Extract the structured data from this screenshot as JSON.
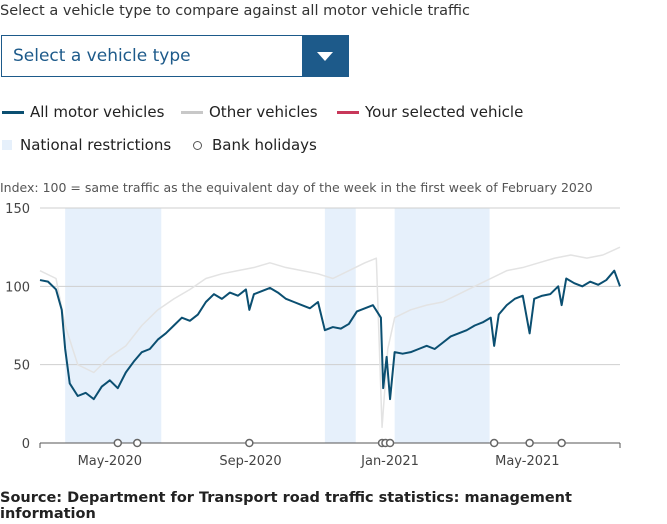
{
  "prompt": "Select a vehicle type to compare against all motor vehicle traffic",
  "select": {
    "value": "Select a vehicle type",
    "icon": "chevron-down-icon"
  },
  "legend": [
    {
      "label": "All motor vehicles",
      "color": "#0b4f71"
    },
    {
      "label": "Other vehicles",
      "color": "#c8c8c8"
    },
    {
      "label": "Your selected vehicle",
      "color": "#c8385a"
    },
    {
      "label": "National restrictions",
      "color": "#e6f0fb"
    },
    {
      "label": "Bank holidays"
    }
  ],
  "index_note": "Index: 100 = same traffic as the equivalent day of the week in the first week of February 2020",
  "source": "Source: Department for Transport road traffic statistics: management information",
  "chart_data": {
    "type": "line",
    "xlim": [
      "2020-03-01",
      "2021-07-21"
    ],
    "ylim": [
      0,
      150
    ],
    "yticks": [
      0,
      50,
      100,
      150
    ],
    "xticks": [
      {
        "date": "2020-05-01",
        "label": "May-2020"
      },
      {
        "date": "2020-09-01",
        "label": "Sep-2020"
      },
      {
        "date": "2021-01-01",
        "label": "Jan-2021"
      },
      {
        "date": "2021-05-01",
        "label": "May-2021"
      }
    ],
    "grid": true,
    "restrictions": [
      [
        "2020-03-23",
        "2020-06-15"
      ],
      [
        "2020-11-05",
        "2020-12-02"
      ],
      [
        "2021-01-05",
        "2021-03-29"
      ]
    ],
    "bank_holidays": [
      "2020-05-08",
      "2020-05-25",
      "2020-08-31",
      "2020-12-25",
      "2020-12-28",
      "2021-01-01",
      "2021-04-02",
      "2021-05-03",
      "2021-05-31"
    ],
    "series": [
      {
        "name": "Other vehicles",
        "color": "#e3e3e3",
        "points": [
          [
            "2020-03-01",
            110
          ],
          [
            "2020-03-15",
            105
          ],
          [
            "2020-03-23",
            75
          ],
          [
            "2020-04-03",
            50
          ],
          [
            "2020-04-17",
            45
          ],
          [
            "2020-05-01",
            55
          ],
          [
            "2020-05-15",
            62
          ],
          [
            "2020-05-29",
            75
          ],
          [
            "2020-06-12",
            85
          ],
          [
            "2020-06-26",
            92
          ],
          [
            "2020-07-10",
            98
          ],
          [
            "2020-07-24",
            105
          ],
          [
            "2020-08-07",
            108
          ],
          [
            "2020-08-21",
            110
          ],
          [
            "2020-09-04",
            112
          ],
          [
            "2020-09-18",
            115
          ],
          [
            "2020-10-02",
            112
          ],
          [
            "2020-10-16",
            110
          ],
          [
            "2020-10-30",
            108
          ],
          [
            "2020-11-12",
            105
          ],
          [
            "2020-11-26",
            110
          ],
          [
            "2020-12-10",
            115
          ],
          [
            "2020-12-20",
            118
          ],
          [
            "2020-12-25",
            10
          ],
          [
            "2020-12-30",
            60
          ],
          [
            "2021-01-05",
            80
          ],
          [
            "2021-01-19",
            85
          ],
          [
            "2021-02-02",
            88
          ],
          [
            "2021-02-16",
            90
          ],
          [
            "2021-03-02",
            95
          ],
          [
            "2021-03-16",
            100
          ],
          [
            "2021-03-30",
            105
          ],
          [
            "2021-04-13",
            110
          ],
          [
            "2021-04-27",
            112
          ],
          [
            "2021-05-11",
            115
          ],
          [
            "2021-05-25",
            118
          ],
          [
            "2021-06-08",
            120
          ],
          [
            "2021-06-22",
            118
          ],
          [
            "2021-07-06",
            120
          ],
          [
            "2021-07-21",
            125
          ]
        ]
      },
      {
        "name": "All motor vehicles",
        "color": "#0b4f71",
        "points": [
          [
            "2020-03-01",
            104
          ],
          [
            "2020-03-08",
            103
          ],
          [
            "2020-03-15",
            98
          ],
          [
            "2020-03-20",
            85
          ],
          [
            "2020-03-23",
            60
          ],
          [
            "2020-03-27",
            38
          ],
          [
            "2020-04-03",
            30
          ],
          [
            "2020-04-10",
            32
          ],
          [
            "2020-04-17",
            28
          ],
          [
            "2020-04-24",
            36
          ],
          [
            "2020-05-01",
            40
          ],
          [
            "2020-05-08",
            35
          ],
          [
            "2020-05-15",
            45
          ],
          [
            "2020-05-22",
            52
          ],
          [
            "2020-05-29",
            58
          ],
          [
            "2020-06-05",
            60
          ],
          [
            "2020-06-12",
            66
          ],
          [
            "2020-06-19",
            70
          ],
          [
            "2020-06-26",
            75
          ],
          [
            "2020-07-03",
            80
          ],
          [
            "2020-07-10",
            78
          ],
          [
            "2020-07-17",
            82
          ],
          [
            "2020-07-24",
            90
          ],
          [
            "2020-07-31",
            95
          ],
          [
            "2020-08-07",
            92
          ],
          [
            "2020-08-14",
            96
          ],
          [
            "2020-08-21",
            94
          ],
          [
            "2020-08-28",
            98
          ],
          [
            "2020-08-31",
            85
          ],
          [
            "2020-09-04",
            95
          ],
          [
            "2020-09-11",
            97
          ],
          [
            "2020-09-18",
            99
          ],
          [
            "2020-09-25",
            96
          ],
          [
            "2020-10-02",
            92
          ],
          [
            "2020-10-09",
            90
          ],
          [
            "2020-10-16",
            88
          ],
          [
            "2020-10-23",
            86
          ],
          [
            "2020-10-30",
            90
          ],
          [
            "2020-11-05",
            72
          ],
          [
            "2020-11-12",
            74
          ],
          [
            "2020-11-19",
            73
          ],
          [
            "2020-11-26",
            76
          ],
          [
            "2020-12-03",
            84
          ],
          [
            "2020-12-10",
            86
          ],
          [
            "2020-12-17",
            88
          ],
          [
            "2020-12-24",
            80
          ],
          [
            "2020-12-26",
            35
          ],
          [
            "2020-12-29",
            55
          ],
          [
            "2021-01-01",
            28
          ],
          [
            "2021-01-05",
            58
          ],
          [
            "2021-01-12",
            57
          ],
          [
            "2021-01-19",
            58
          ],
          [
            "2021-01-26",
            60
          ],
          [
            "2021-02-02",
            62
          ],
          [
            "2021-02-09",
            60
          ],
          [
            "2021-02-16",
            64
          ],
          [
            "2021-02-23",
            68
          ],
          [
            "2021-03-02",
            70
          ],
          [
            "2021-03-09",
            72
          ],
          [
            "2021-03-16",
            75
          ],
          [
            "2021-03-23",
            77
          ],
          [
            "2021-03-30",
            80
          ],
          [
            "2021-04-02",
            62
          ],
          [
            "2021-04-06",
            82
          ],
          [
            "2021-04-13",
            88
          ],
          [
            "2021-04-20",
            92
          ],
          [
            "2021-04-27",
            94
          ],
          [
            "2021-05-03",
            70
          ],
          [
            "2021-05-07",
            92
          ],
          [
            "2021-05-14",
            94
          ],
          [
            "2021-05-21",
            95
          ],
          [
            "2021-05-28",
            100
          ],
          [
            "2021-05-31",
            88
          ],
          [
            "2021-06-04",
            105
          ],
          [
            "2021-06-11",
            102
          ],
          [
            "2021-06-18",
            100
          ],
          [
            "2021-06-25",
            103
          ],
          [
            "2021-07-02",
            101
          ],
          [
            "2021-07-09",
            104
          ],
          [
            "2021-07-16",
            110
          ],
          [
            "2021-07-21",
            100
          ]
        ]
      }
    ]
  }
}
